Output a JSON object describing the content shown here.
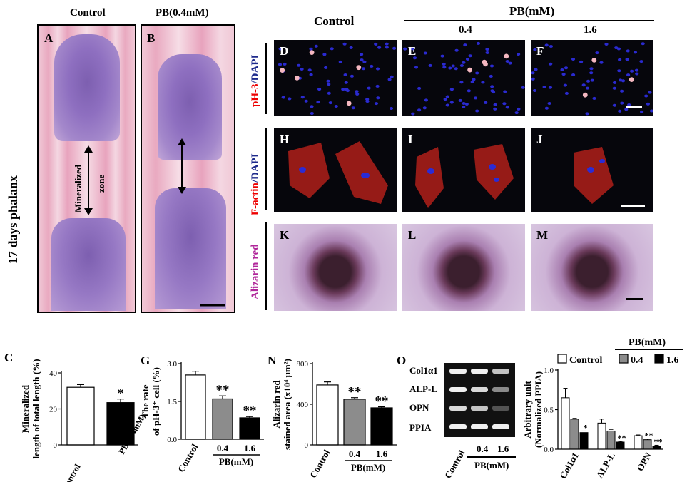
{
  "top_left": {
    "header_control": "Control",
    "header_pb": "PB(0.4mM)",
    "side_label": "17 days phalanx",
    "panel_a": "A",
    "panel_b": "B",
    "zone_label_1": "Mineralized",
    "zone_label_2": "zone"
  },
  "top_right": {
    "header_control": "Control",
    "header_pb": "PB(mM)",
    "conc_1": "0.4",
    "conc_2": "1.6",
    "row1_label_red": "pH-3",
    "row1_label_blue": "/DAPI",
    "row2_label_red": "F-actin",
    "row2_label_blue": "/DAPI",
    "row3_label": "Alizarin red",
    "panels": [
      "D",
      "E",
      "F",
      "H",
      "I",
      "J",
      "K",
      "L",
      "M"
    ]
  },
  "bottom": {
    "panel_c": "C",
    "panel_g": "G",
    "panel_n": "N",
    "panel_o": "O",
    "gel_labels": [
      "Col1α1",
      "ALP-L",
      "OPN",
      "PPIA"
    ],
    "gel_x_control": "Control",
    "gel_x_conc": [
      "0.4",
      "1.6"
    ],
    "gel_x_pb": "PB(mM)"
  },
  "chart_data": [
    {
      "id": "C",
      "type": "bar",
      "ylabel_1": "Mineralized",
      "ylabel_2": "length of total length",
      "ylabel_unit": "(%)",
      "categories": [
        "Control",
        "PB (0.4mM)"
      ],
      "values": [
        32,
        23.5
      ],
      "errors": [
        1.5,
        2
      ],
      "significance": [
        "",
        "*"
      ],
      "fills": [
        "#ffffff",
        "#000000"
      ],
      "ylim": [
        0,
        40
      ],
      "yticks": [
        "0",
        "20",
        "40"
      ]
    },
    {
      "id": "G",
      "type": "bar",
      "ylabel_1": "The rate",
      "ylabel_2": "of pH-3⁺ cell",
      "ylabel_unit": "(%)",
      "categories": [
        "Control",
        "0.4",
        "1.6"
      ],
      "group_label": "PB(mM)",
      "values": [
        2.55,
        1.6,
        0.85
      ],
      "errors": [
        0.15,
        0.12,
        0.05
      ],
      "significance": [
        "",
        "**",
        "**"
      ],
      "fills": [
        "#ffffff",
        "#8c8c8c",
        "#000000"
      ],
      "ylim": [
        0,
        3.0
      ],
      "yticks": [
        "0.0",
        "1.5",
        "3.0"
      ]
    },
    {
      "id": "N",
      "type": "bar",
      "ylabel_1": "Alizarin red",
      "ylabel_2": "stained area",
      "ylabel_unit": "(x10⁴ μm²)",
      "categories": [
        "Control",
        "0.4",
        "1.6"
      ],
      "group_label": "PB(mM)",
      "values": [
        590,
        450,
        365
      ],
      "errors": [
        30,
        15,
        10
      ],
      "significance": [
        "",
        "**",
        "**"
      ],
      "fills": [
        "#ffffff",
        "#8c8c8c",
        "#000000"
      ],
      "ylim": [
        0,
        800
      ],
      "yticks": [
        "0",
        "400",
        "800"
      ]
    },
    {
      "id": "O",
      "type": "bar",
      "ylabel_1": "Arbitrary unit",
      "ylabel_2": "(Normalized PPIA)",
      "categories": [
        "Col1α1",
        "ALP-L",
        "OPN"
      ],
      "group_title": "PB(mM)",
      "series": [
        {
          "name": "Control",
          "values": [
            0.65,
            0.33,
            0.17
          ],
          "errors": [
            0.12,
            0.05,
            0.01
          ],
          "fill": "#ffffff",
          "sig": [
            "",
            "",
            ""
          ]
        },
        {
          "name": "0.4",
          "values": [
            0.38,
            0.23,
            0.12
          ],
          "errors": [
            0.01,
            0.02,
            0.01
          ],
          "fill": "#8c8c8c",
          "sig": [
            "",
            "",
            "**"
          ]
        },
        {
          "name": "1.6",
          "values": [
            0.21,
            0.09,
            0.04
          ],
          "errors": [
            0.02,
            0.01,
            0.01
          ],
          "fill": "#000000",
          "sig": [
            "*",
            "**",
            "**"
          ]
        }
      ],
      "ylim": [
        0,
        1.0
      ],
      "yticks": [
        "0.0",
        "0.5",
        "1.0"
      ]
    }
  ]
}
